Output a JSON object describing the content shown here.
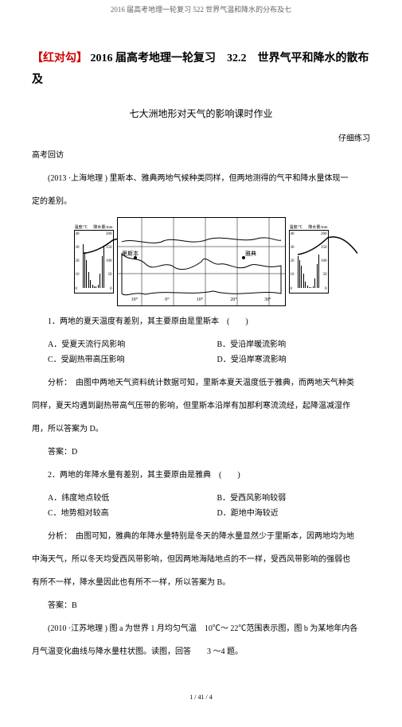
{
  "header": {
    "topbar": "2016 届高考地理一轮复习 522 世界气温和降水的分布及七"
  },
  "title": {
    "bracket": "【红对勾】",
    "rest": " 2016 届高考地理一轮复习　32.2　世界气平和降水的散布及"
  },
  "subtitle": "七大洲地形对天气的影响课时作业",
  "rightnote": "仔细练习",
  "sectionA": "高考回访",
  "intro": {
    "l1": "(2013 ·上海地理 ) 里斯本、雅典两地气候种类同样，但两地测得的气平和降水量体现一",
    "l2": "定的差别。"
  },
  "climate": {
    "left": {
      "tLabel": "温度/℃",
      "pLabel": "降水量/mm",
      "axisL": [
        "40",
        "30",
        "20",
        "10",
        "0"
      ],
      "axisR": [
        "200",
        "150",
        "100",
        "50",
        "0"
      ],
      "bars": [
        55,
        45,
        35,
        20,
        10,
        4,
        2,
        2,
        4,
        18,
        40,
        52
      ]
    },
    "right": {
      "tLabel": "温度/℃",
      "pLabel": "降水量/mm",
      "axisL": [
        "40",
        "30",
        "20",
        "10",
        "0"
      ],
      "axisR": [
        "200",
        "150",
        "100",
        "50",
        "0"
      ],
      "bars": [
        40,
        35,
        28,
        18,
        8,
        3,
        1,
        1,
        2,
        12,
        30,
        42
      ]
    }
  },
  "map": {
    "lon": [
      "10°",
      "0°",
      "10°",
      "20°",
      "30°"
    ]
  },
  "q1": {
    "stem": "1．两地的夏天温度有差别，其主要原由是里斯本　(　　)",
    "A": "A．受夏天流行风影响",
    "B": "B．受沿岸暖流影响",
    "C": "C．受副热带高压影响",
    "D": "D．受沿岸寒流影响",
    "ana1": "分析：　由图中两地天气资料统计数据可知，里斯本夏天温度低于雅典，而两地天气种类",
    "ana2": "同样，夏天均遇到副热带高气压带的影响，但里斯本沿岸有加那利寒流流经，起降温减湿作",
    "ana3": "用，所以答案为 D。",
    "ans": "答案：D"
  },
  "q2": {
    "stem": "2．两地的年降水量有差别，其主要原由是雅典　(　　)",
    "A": "A．纬度地点较低",
    "B": "B．受西风影响较弱",
    "C": "C．地势相对较高",
    "D": "D．距地中海较近",
    "ana1": "分析：　由图可知，雅典的年降水量特别是冬天的降水量显然少于里斯本，因两地均为地",
    "ana2": "中海天气，所以冬天均受西风带影响，但因两地海陆地点的不一样，受西风带影响的强弱也",
    "ana3": "有所不一样，降水量因此也有所不一样，所以答案为 B。",
    "ans": "答案：B"
  },
  "q3": {
    "l1": "(2010 ·江苏地理 ) 图 a 为世界 1 月均匀气温　10℃～ 22℃范围表示图，图 b 为某地年内各",
    "l2": "月气温变化曲线与降水量柱状图。读图，回答　　3 ～4 题。"
  },
  "footer": "1 / 41 / 4"
}
